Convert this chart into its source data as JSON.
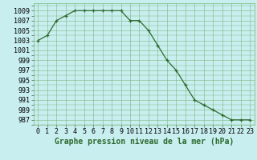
{
  "x": [
    0,
    1,
    2,
    3,
    4,
    5,
    6,
    7,
    8,
    9,
    10,
    11,
    12,
    13,
    14,
    15,
    16,
    17,
    18,
    19,
    20,
    21,
    22,
    23
  ],
  "y": [
    1003,
    1004,
    1007,
    1008,
    1009,
    1009,
    1009,
    1009,
    1009,
    1009,
    1007,
    1007,
    1005,
    1002,
    999,
    997,
    994,
    991,
    990,
    989,
    988,
    987,
    987,
    987
  ],
  "line_color": "#2d6a2d",
  "marker": "+",
  "bg_color": "#c8eef0",
  "grid_color": "#7ab87a",
  "xlabel": "Graphe pression niveau de la mer (hPa)",
  "ylabel_ticks": [
    987,
    989,
    991,
    993,
    995,
    997,
    999,
    1001,
    1003,
    1005,
    1007,
    1009
  ],
  "xlim": [
    -0.5,
    23.5
  ],
  "ylim": [
    986,
    1010.5
  ],
  "xlabel_fontsize": 7,
  "tick_fontsize": 6
}
